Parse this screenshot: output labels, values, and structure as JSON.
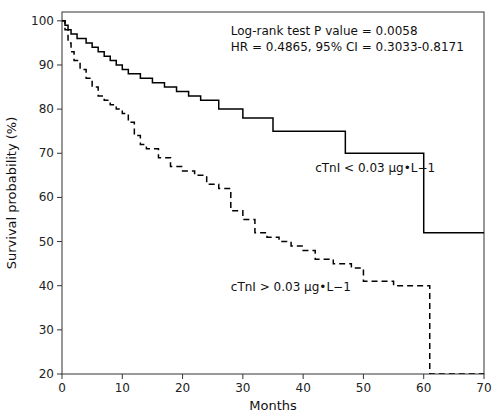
{
  "chart_data": {
    "type": "step",
    "annotations": [
      "Log-rank test P value = 0.0058",
      "HR = 0.4865, 95% CI = 0.3033-0.8171"
    ],
    "xlabel": "Months",
    "ylabel": "Survival probability (%)",
    "xlim": [
      0,
      70
    ],
    "ylim": [
      20,
      102
    ],
    "xticks": [
      0,
      10,
      20,
      30,
      40,
      50,
      60,
      70
    ],
    "yticks": [
      20,
      30,
      40,
      50,
      60,
      70,
      80,
      90,
      100
    ],
    "series": [
      {
        "name": "cTnI < 0.03 μg•L−1",
        "color": "#000000",
        "line_style": "solid",
        "x": [
          0,
          0.5,
          1,
          1.5,
          2,
          2.5,
          3,
          4,
          5,
          6,
          7,
          8,
          9,
          10,
          11,
          13,
          15,
          17,
          19,
          21,
          23,
          26,
          30,
          35,
          47,
          60,
          70
        ],
        "values": [
          100,
          99,
          98,
          97,
          97,
          96,
          96,
          95,
          94,
          93,
          92,
          91,
          90,
          89,
          88,
          87,
          86,
          85,
          84,
          83,
          82,
          80,
          78,
          75,
          70,
          52,
          52
        ]
      },
      {
        "name": "cTnI > 0.03 μg•L−1",
        "color": "#000000",
        "line_style": "dashed",
        "x": [
          0,
          0.5,
          1,
          1.5,
          2,
          3,
          4,
          5,
          6,
          7,
          8,
          9,
          10,
          11,
          12,
          13,
          14,
          16,
          18,
          20,
          22,
          24,
          26,
          28,
          30,
          32,
          34,
          36,
          38,
          40,
          42,
          45,
          48,
          50,
          55,
          60,
          61,
          70
        ],
        "values": [
          100,
          98,
          95,
          93,
          91,
          89,
          87,
          85,
          83,
          82,
          81,
          80,
          79,
          77,
          74,
          72,
          71,
          69,
          67,
          66,
          65,
          63,
          62,
          57,
          55,
          52,
          51,
          50,
          49,
          48,
          46,
          45,
          44,
          41,
          40,
          40,
          20,
          20
        ]
      }
    ]
  }
}
